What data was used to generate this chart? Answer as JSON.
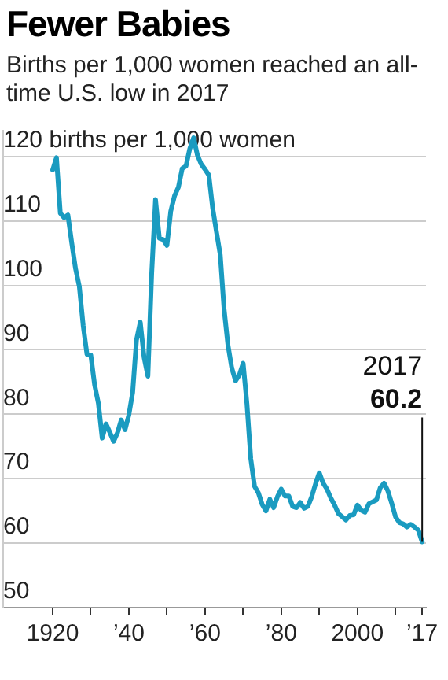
{
  "chart_data": {
    "type": "line",
    "title": "Fewer Babies",
    "subtitle": "Births per 1,000 women reached an all-time U.S. low in 2017",
    "x": [
      1920,
      1921,
      1922,
      1923,
      1924,
      1925,
      1926,
      1927,
      1928,
      1929,
      1930,
      1931,
      1932,
      1933,
      1934,
      1935,
      1936,
      1937,
      1938,
      1939,
      1940,
      1941,
      1942,
      1943,
      1944,
      1945,
      1946,
      1947,
      1948,
      1949,
      1950,
      1951,
      1952,
      1953,
      1954,
      1955,
      1956,
      1957,
      1958,
      1959,
      1960,
      1961,
      1962,
      1963,
      1964,
      1965,
      1966,
      1967,
      1968,
      1969,
      1970,
      1971,
      1972,
      1973,
      1974,
      1975,
      1976,
      1977,
      1978,
      1979,
      1980,
      1981,
      1982,
      1983,
      1984,
      1985,
      1986,
      1987,
      1988,
      1989,
      1990,
      1991,
      1992,
      1993,
      1994,
      1995,
      1996,
      1997,
      1998,
      1999,
      2000,
      2001,
      2002,
      2003,
      2004,
      2005,
      2006,
      2007,
      2008,
      2009,
      2010,
      2011,
      2012,
      2013,
      2014,
      2015,
      2016,
      2017
    ],
    "series": [
      {
        "color": "#1a9bc0",
        "values": [
          117.9,
          119.8,
          111.2,
          110.5,
          110.9,
          106.6,
          102.6,
          99.8,
          93.8,
          89.3,
          89.2,
          84.6,
          81.7,
          76.3,
          78.5,
          77.2,
          75.8,
          77.1,
          79.1,
          77.6,
          79.9,
          83.4,
          91.5,
          94.3,
          88.8,
          85.9,
          101.9,
          113.3,
          107.3,
          107.1,
          106.2,
          111.5,
          113.9,
          115.2,
          118.1,
          118.5,
          121.2,
          122.9,
          120.2,
          118.8,
          118.0,
          117.1,
          112.0,
          108.3,
          104.7,
          96.3,
          90.8,
          87.2,
          85.2,
          86.1,
          87.9,
          81.6,
          73.1,
          68.8,
          67.8,
          66.0,
          65.0,
          66.8,
          65.5,
          67.2,
          68.4,
          67.3,
          67.3,
          65.7,
          65.5,
          66.3,
          65.4,
          65.7,
          67.2,
          69.2,
          70.9,
          69.3,
          68.4,
          67.0,
          65.9,
          64.6,
          64.1,
          63.6,
          64.3,
          64.4,
          65.9,
          65.1,
          64.8,
          66.1,
          66.4,
          66.7,
          68.6,
          69.3,
          68.1,
          66.2,
          64.1,
          63.2,
          63.0,
          62.5,
          62.9,
          62.5,
          62.0,
          60.2
        ]
      }
    ],
    "xlim": [
      1907,
      2018
    ],
    "xticks": [
      1920,
      {
        "value": 1930,
        "label": null
      },
      {
        "value": 1940,
        "label": "’40"
      },
      {
        "value": 1950,
        "label": null
      },
      {
        "value": 1960,
        "label": "’60"
      },
      {
        "value": 1970,
        "label": null
      },
      {
        "value": 1980,
        "label": "’80"
      },
      {
        "value": 1990,
        "label": null
      },
      2000,
      {
        "value": 2010,
        "label": null
      },
      {
        "value": 2017,
        "label": "’17"
      }
    ],
    "ylim": [
      50,
      124
    ],
    "yticks": [
      50,
      60,
      70,
      80,
      90,
      100,
      110,
      {
        "value": 120,
        "label": "120 births per 1,000 women"
      }
    ],
    "grid": "y",
    "legend": false,
    "marker": "none",
    "line_style": "solid",
    "annotations": [
      "2017",
      {
        "text": "60.2",
        "x": 2017,
        "y": 60.2
      }
    ]
  }
}
